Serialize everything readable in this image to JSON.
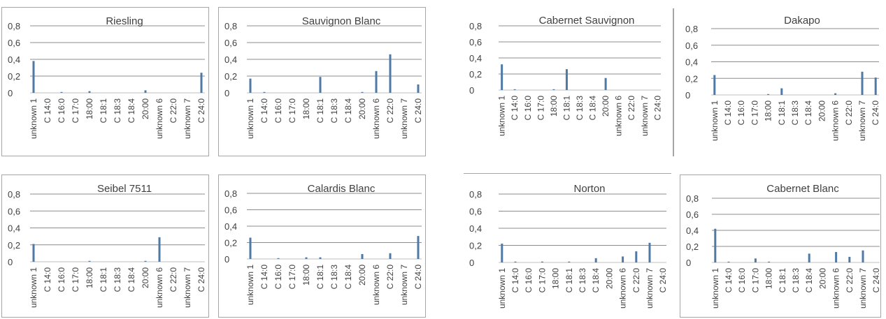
{
  "colors": {
    "bar": "#4f7aa5",
    "grid": "#8c8c8c",
    "border": "#a6a6a6",
    "text": "#404040"
  },
  "chart_data": [
    {
      "type": "bar",
      "title": "Riesling",
      "categories": [
        "unknown 1",
        "C 14:0",
        "C 16:0",
        "C 17:0",
        "18:00",
        "C 18:1",
        "C 18:3",
        "C 18:4",
        "20:00",
        "unknown 6",
        "C 22:0",
        "unknown 7",
        "C 24:0"
      ],
      "yticks": [
        "0",
        "0,2",
        "0,4",
        "0,6",
        "0,8"
      ],
      "ylim": [
        0,
        0.8
      ],
      "grid": true,
      "legend": "none",
      "values": [
        0.38,
        0,
        0.01,
        0,
        0.02,
        0,
        0,
        0,
        0.03,
        0,
        0,
        0,
        0.24
      ]
    },
    {
      "type": "bar",
      "title": "Sauvignon Blanc",
      "categories": [
        "unknown 1",
        "C 14:0",
        "C 16:0",
        "C 17:0",
        "18:00",
        "C 18:1",
        "C 18:3",
        "C 18:4",
        "20:00",
        "unknown 6",
        "C 22:0",
        "unknown 7",
        "C 24:0"
      ],
      "yticks": [
        "0",
        "0,2",
        "0,4",
        "0,6",
        "0,8"
      ],
      "ylim": [
        0,
        0.8
      ],
      "grid": true,
      "legend": "none",
      "values": [
        0.17,
        0.01,
        0,
        0,
        0,
        0.19,
        0,
        0,
        0.01,
        0.26,
        0.46,
        0,
        0.1
      ]
    },
    {
      "type": "bar",
      "title": "Cabernet Sauvignon",
      "categories": [
        "unknown 1",
        "C 14:0",
        "C 16:0",
        "C 17:0",
        "18:00",
        "C 18:1",
        "C 18:3",
        "C 18:4",
        "20:00",
        "unknown 6",
        "C 22:0",
        "unknown 7",
        "C 24:0"
      ],
      "yticks": [
        "0",
        "0,2",
        "0,4",
        "0,6",
        "0,8"
      ],
      "ylim": [
        0,
        0.8
      ],
      "grid": true,
      "legend": "none",
      "values": [
        0.32,
        0.01,
        0,
        0,
        0.01,
        0.26,
        0,
        0,
        0.15,
        0,
        0,
        0,
        0
      ]
    },
    {
      "type": "bar",
      "title": "Dakapo",
      "categories": [
        "unknown 1",
        "C 14:0",
        "C 16:0",
        "C 17:0",
        "18:00",
        "C 18:1",
        "C 18:3",
        "C 18:4",
        "20:00",
        "unknown 6",
        "C 22:0",
        "unknown 7",
        "C 24:0"
      ],
      "yticks": [
        "0",
        "0,2",
        "0,4",
        "0,6",
        "0,8"
      ],
      "ylim": [
        0,
        0.8
      ],
      "grid": true,
      "legend": "none",
      "values": [
        0.24,
        0,
        0,
        0,
        0.01,
        0.08,
        0,
        0,
        0,
        0.02,
        0,
        0.28,
        0.21
      ]
    },
    {
      "type": "bar",
      "title": "Seibel 7511",
      "categories": [
        "unknown 1",
        "C 14:0",
        "C 16:0",
        "C 17:0",
        "18:00",
        "C 18:1",
        "C 18:3",
        "C 18:4",
        "20:00",
        "unknown 6",
        "C 22:0",
        "unknown 7",
        "C 24:0"
      ],
      "yticks": [
        "0",
        "0,2",
        "0,4",
        "0,6",
        "0,8"
      ],
      "ylim": [
        0,
        0.8
      ],
      "grid": true,
      "legend": "none",
      "values": [
        0.21,
        0,
        0,
        0,
        0.01,
        0,
        0,
        0,
        0.01,
        0.29,
        0,
        0,
        0
      ]
    },
    {
      "type": "bar",
      "title": "Calardis Blanc",
      "categories": [
        "unknown 1",
        "C 14:0",
        "C 16:0",
        "C 17:0",
        "18:00",
        "C 18:1",
        "C 18:3",
        "C 18:4",
        "20:00",
        "unknown 6",
        "C 22:0",
        "unknown 7",
        "C 24:0"
      ],
      "yticks": [
        "0",
        "0,2",
        "0,4",
        "0,6",
        "0,8"
      ],
      "ylim": [
        0,
        0.8
      ],
      "grid": true,
      "legend": "none",
      "values": [
        0.26,
        0,
        0.01,
        0,
        0.02,
        0.02,
        0,
        0,
        0.06,
        0,
        0.07,
        0,
        0.28
      ]
    },
    {
      "type": "bar",
      "title": "Norton",
      "categories": [
        "unknown 1",
        "C 14:0",
        "C 16:0",
        "C 17:0",
        "18:00",
        "C 18:1",
        "C 18:3",
        "C 18:4",
        "20:00",
        "unknown 6",
        "C 22:0",
        "unknown 7",
        "C 24:0"
      ],
      "yticks": [
        "0",
        "0,2",
        "0,4",
        "0,6",
        "0,8"
      ],
      "ylim": [
        0,
        0.8
      ],
      "grid": true,
      "legend": "none",
      "values": [
        0.22,
        0.01,
        0,
        0.01,
        0,
        0.01,
        0,
        0.05,
        0,
        0.07,
        0.13,
        0.23,
        0
      ]
    },
    {
      "type": "bar",
      "title": "Cabernet Blanc",
      "categories": [
        "unknown 1",
        "C 14:0",
        "C 16:0",
        "C 17:0",
        "18:00",
        "C 18:1",
        "C 18:3",
        "C 18:4",
        "20:00",
        "unknown 6",
        "C 22:0",
        "unknown 7",
        "C 24:0"
      ],
      "yticks": [
        "0",
        "0,2",
        "0,4",
        "0,6",
        "0,8"
      ],
      "ylim": [
        0,
        0.8
      ],
      "grid": true,
      "legend": "none",
      "values": [
        0.42,
        0.01,
        0,
        0.05,
        0.01,
        0,
        0,
        0.11,
        0,
        0.13,
        0.07,
        0.15,
        0
      ]
    }
  ]
}
